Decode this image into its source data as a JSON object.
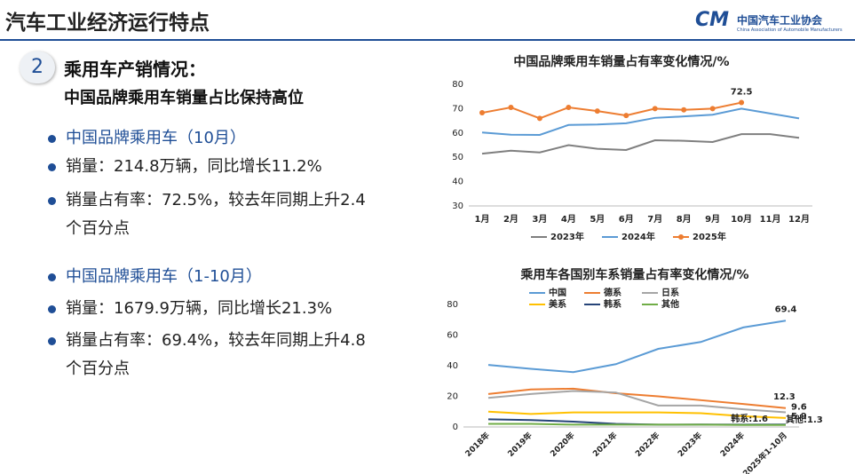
{
  "header": {
    "title": "汽车工业经济运行特点",
    "logo_name": "中国汽车工业协会",
    "logo_english": "China Association of Automobile Manufacturers"
  },
  "section": {
    "number": "2",
    "heading": "乘用车产销情况：",
    "subheading": "中国品牌乘用车销量占比保持高位"
  },
  "bullets": [
    "中国品牌乘用车（10月）",
    "销量：214.8万辆，同比增长11.2%",
    "销量占有率：72.5%，较去年同期上升2.4个百分点",
    "中国品牌乘用车（1-10月）",
    "销量：1679.9万辆，同比增长21.3%",
    "销量占有率：69.4%，较去年同期上升4.8个百分点"
  ],
  "chart_data": [
    {
      "type": "line",
      "title": "中国品牌乘用车销量占有率变化情况/%",
      "categories": [
        "1月",
        "2月",
        "3月",
        "4月",
        "5月",
        "6月",
        "7月",
        "8月",
        "9月",
        "10月",
        "11月",
        "12月"
      ],
      "ylim": [
        30,
        80
      ],
      "yticks": [
        30,
        40,
        50,
        60,
        70,
        80
      ],
      "grid": false,
      "series": [
        {
          "name": "2023年",
          "color": "#7f7f7f",
          "values": [
            51.5,
            52.7,
            52,
            55,
            53.5,
            53,
            57,
            56.8,
            56.3,
            59.5,
            59.5,
            58
          ]
        },
        {
          "name": "2024年",
          "color": "#5b9bd5",
          "values": [
            60.2,
            59.3,
            59.2,
            63.3,
            63.5,
            64,
            66.2,
            66.8,
            67.5,
            70,
            68,
            66
          ]
        },
        {
          "name": "2025年",
          "color": "#ed7d31",
          "markers": true,
          "values": [
            68.3,
            70.5,
            66,
            70.5,
            69,
            67.2,
            70,
            69.5,
            70,
            72.5,
            null,
            null
          ],
          "value_labels": [
            null,
            null,
            null,
            null,
            null,
            null,
            null,
            null,
            null,
            "72.5",
            null,
            null
          ]
        }
      ]
    },
    {
      "type": "line",
      "title": "乘用车各国别车系销量占有率变化情况/%",
      "categories": [
        "2018年",
        "2019年",
        "2020年",
        "2021年",
        "2022年",
        "2023年",
        "2024年",
        "2025年1-10月"
      ],
      "ylim": [
        0,
        80
      ],
      "yticks": [
        0,
        20,
        40,
        60,
        80
      ],
      "grid": false,
      "series": [
        {
          "name": "中国",
          "color": "#5b9bd5",
          "values": [
            40.5,
            38,
            35.8,
            41,
            51,
            55.5,
            65,
            69.4
          ],
          "value_labels": [
            null,
            null,
            null,
            null,
            null,
            null,
            null,
            "69.4"
          ]
        },
        {
          "name": "德系",
          "color": "#ed7d31",
          "values": [
            21.5,
            24.5,
            25,
            22,
            20,
            17.5,
            15,
            12.3
          ],
          "value_labels": [
            null,
            null,
            null,
            null,
            null,
            null,
            null,
            "12.3"
          ]
        },
        {
          "name": "日系",
          "color": "#a5a5a5",
          "values": [
            19,
            21.5,
            23.5,
            22.5,
            14,
            14,
            11.5,
            9.6
          ],
          "value_labels": [
            null,
            null,
            null,
            null,
            null,
            null,
            null,
            "9.6"
          ]
        },
        {
          "name": "美系",
          "color": "#ffc000",
          "values": [
            10,
            8.5,
            9.5,
            9.5,
            9.5,
            9,
            7,
            5.9
          ],
          "value_labels": [
            null,
            null,
            null,
            null,
            null,
            null,
            null,
            "5.9"
          ]
        },
        {
          "name": "韩系",
          "color": "#264478",
          "values": [
            5,
            4.5,
            3.5,
            2,
            1.5,
            1.6,
            1.5,
            1.6
          ],
          "value_labels": [
            null,
            null,
            null,
            null,
            null,
            null,
            null,
            "韩系:1.6"
          ]
        },
        {
          "name": "其他",
          "color": "#70ad47",
          "values": [
            2,
            2,
            1.5,
            1.5,
            1.5,
            1.5,
            1.3,
            1.3
          ],
          "value_labels": [
            null,
            null,
            null,
            null,
            null,
            null,
            null,
            "其他:1.3"
          ]
        }
      ]
    }
  ]
}
